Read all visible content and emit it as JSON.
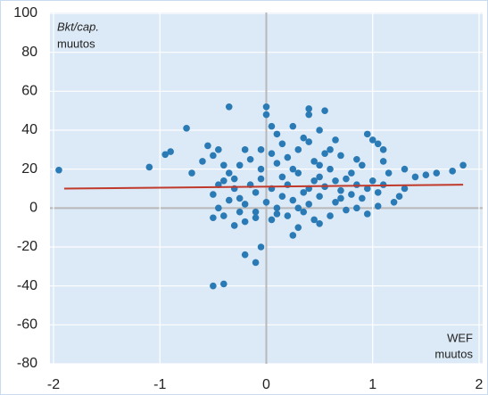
{
  "chart_data": {
    "type": "scatter",
    "ylabel": [
      "Bkt/cap.",
      "muutos"
    ],
    "xlabel": [
      "WEF",
      "muutos"
    ],
    "color": "#2a7ab5",
    "x": [
      -1.95,
      -1.1,
      -0.95,
      -0.9,
      -0.75,
      -0.7,
      -0.6,
      -0.55,
      -0.5,
      -0.45,
      -0.4,
      -0.35,
      -0.5,
      -0.4,
      -0.2,
      -0.1,
      -0.05,
      0,
      0,
      0.05,
      0.4,
      0.4,
      0.55,
      0.95,
      1.0,
      1.05,
      1.1,
      1.1,
      1.3,
      1.4,
      1.5,
      1.6,
      1.75,
      1.85,
      1.2,
      1.25,
      1.3,
      1.05,
      0.95,
      0.85,
      0.7,
      0.5,
      0.3,
      0.25,
      0.1,
      -0.1,
      -0.2,
      -0.3,
      -0.4,
      -0.5,
      -0.45,
      -0.5,
      -0.45,
      -0.35,
      -0.3,
      -0.3,
      -0.25,
      -0.2,
      -0.15,
      -0.1,
      -0.05,
      0,
      0.05,
      0.1,
      0.15,
      0.2,
      0.25,
      0.3,
      0.35,
      0.4,
      0.45,
      0.5,
      0.55,
      0.6,
      0.65,
      0.7,
      0.75,
      0.8,
      0.85,
      0.9,
      -0.25,
      -0.15,
      -0.05,
      0.05,
      0.1,
      0.2,
      0.3,
      0.4,
      0.45,
      0.5,
      0.6,
      0.7,
      0.8,
      0.9,
      1.0,
      1.1,
      1.15,
      -0.2,
      0.15,
      0.35,
      0.55,
      0.65,
      0.85,
      -0.1,
      0.05,
      0.2,
      0.35,
      0.45,
      0.6,
      0.75,
      -0.35,
      -0.25,
      0.95,
      1.05,
      0.15,
      0.25,
      0.5,
      0.65,
      0.4,
      0.3,
      -0.4,
      -0.05,
      0.1,
      0.25,
      0.5
    ],
    "values": [
      19.5,
      21,
      27.5,
      29,
      41,
      18,
      24,
      32,
      27,
      30,
      22,
      52,
      -40,
      -39,
      -24,
      -28,
      -20,
      52,
      48,
      42,
      51,
      48,
      50,
      38,
      35,
      33,
      30,
      24,
      20,
      16,
      17,
      18,
      19,
      22,
      3,
      6,
      10,
      1,
      -3,
      0,
      5,
      -8,
      -10,
      -14,
      -3,
      -5,
      -7,
      -9,
      -4,
      -5,
      0,
      7,
      12,
      18,
      15,
      10,
      5,
      2,
      12,
      8,
      15,
      3,
      10,
      0,
      6,
      12,
      4,
      18,
      8,
      2,
      14,
      6,
      11,
      20,
      3,
      9,
      15,
      7,
      12,
      5,
      22,
      25,
      20,
      28,
      23,
      26,
      30,
      34,
      24,
      22,
      30,
      27,
      18,
      22,
      14,
      12,
      18,
      30,
      33,
      36,
      28,
      35,
      25,
      -2,
      -6,
      -4,
      -2,
      -6,
      -4,
      -1,
      4,
      -2,
      10,
      8,
      16,
      20,
      16,
      14,
      10,
      0,
      14,
      30,
      38,
      42,
      40
    ],
    "trend": {
      "color": "#c0392b",
      "x": [
        -1.9,
        1.85
      ],
      "values": [
        10,
        12
      ]
    },
    "xlim": [
      -2,
      2
    ],
    "xticks": [
      -2,
      -1,
      0,
      1,
      2
    ],
    "ylim": [
      -80,
      100
    ],
    "yticks": [
      -80,
      -60,
      -40,
      -20,
      0,
      20,
      40,
      60,
      80,
      100
    ],
    "grid": true
  }
}
